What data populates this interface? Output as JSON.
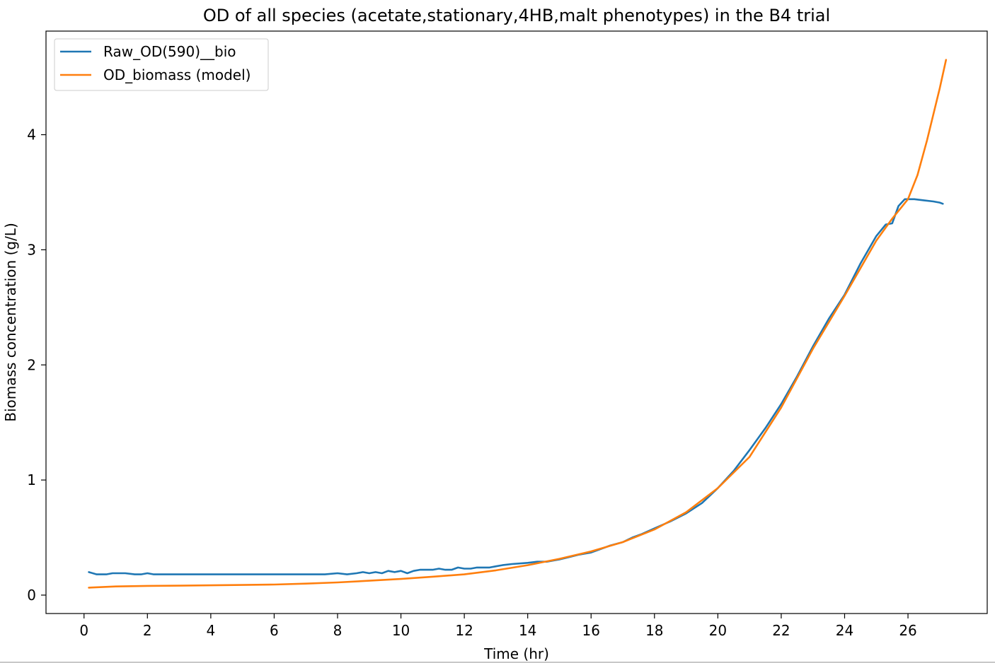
{
  "chart_data": {
    "type": "line",
    "title": "OD of all species (acetate,stationary,4HB,malt phenotypes) in the B4 trial",
    "xlabel": "Time (hr)",
    "ylabel": "Biomass concentration (g/L)",
    "xlim": [
      -1.2,
      28.5
    ],
    "ylim": [
      -0.16,
      4.9
    ],
    "xticks": [
      0,
      2,
      4,
      6,
      8,
      10,
      12,
      14,
      16,
      18,
      20,
      22,
      24,
      26
    ],
    "xtick_labels": [
      "0",
      "2",
      "4",
      "6",
      "8",
      "10",
      "12",
      "14",
      "16",
      "18",
      "20",
      "22",
      "24",
      "26"
    ],
    "yticks": [
      0,
      1,
      2,
      3,
      4
    ],
    "ytick_labels": [
      "0",
      "1",
      "2",
      "3",
      "4"
    ],
    "grid": false,
    "legend_position": "top-left",
    "series": [
      {
        "name": "Raw_OD(590)__bio",
        "color": "#1f77b4",
        "x": [
          0.15,
          0.4,
          0.7,
          0.9,
          1.1,
          1.3,
          1.6,
          1.8,
          2.0,
          2.2,
          2.5,
          3.0,
          3.3,
          3.6,
          4.0,
          4.5,
          5.0,
          5.3,
          5.6,
          6.0,
          6.3,
          6.5,
          6.8,
          7.0,
          7.3,
          7.6,
          8.0,
          8.3,
          8.6,
          8.8,
          9.0,
          9.2,
          9.4,
          9.6,
          9.8,
          10.0,
          10.2,
          10.4,
          10.6,
          10.8,
          11.0,
          11.2,
          11.4,
          11.6,
          11.8,
          12.0,
          12.2,
          12.4,
          12.6,
          12.8,
          13.0,
          13.2,
          13.5,
          14.0,
          14.3,
          14.6,
          15.0,
          15.3,
          15.6,
          16.0,
          16.3,
          16.6,
          17.0,
          17.3,
          17.6,
          18.0,
          18.5,
          19.0,
          19.5,
          20.0,
          20.5,
          21.0,
          21.5,
          22.0,
          22.5,
          23.0,
          23.5,
          24.0,
          24.5,
          25.0,
          25.3,
          25.5,
          25.7,
          25.9,
          26.2,
          26.5,
          26.8,
          27.0,
          27.1
        ],
        "values": [
          0.2,
          0.18,
          0.18,
          0.19,
          0.19,
          0.19,
          0.18,
          0.18,
          0.19,
          0.18,
          0.18,
          0.18,
          0.18,
          0.18,
          0.18,
          0.18,
          0.18,
          0.18,
          0.18,
          0.18,
          0.18,
          0.18,
          0.18,
          0.18,
          0.18,
          0.18,
          0.19,
          0.18,
          0.19,
          0.2,
          0.19,
          0.2,
          0.19,
          0.21,
          0.2,
          0.21,
          0.19,
          0.21,
          0.22,
          0.22,
          0.22,
          0.23,
          0.22,
          0.22,
          0.24,
          0.23,
          0.23,
          0.24,
          0.24,
          0.24,
          0.25,
          0.26,
          0.27,
          0.28,
          0.29,
          0.29,
          0.31,
          0.33,
          0.35,
          0.37,
          0.4,
          0.43,
          0.46,
          0.5,
          0.53,
          0.58,
          0.64,
          0.71,
          0.8,
          0.93,
          1.08,
          1.26,
          1.45,
          1.66,
          1.9,
          2.16,
          2.4,
          2.61,
          2.88,
          3.12,
          3.22,
          3.23,
          3.38,
          3.44,
          3.44,
          3.43,
          3.42,
          3.41,
          3.4
        ]
      },
      {
        "name": "OD_biomass (model)",
        "color": "#ff7f0e",
        "x": [
          0.15,
          1.0,
          2.0,
          3.0,
          4.0,
          5.0,
          6.0,
          7.0,
          8.0,
          9.0,
          10.0,
          11.0,
          12.0,
          13.0,
          14.0,
          15.0,
          16.0,
          17.0,
          18.0,
          19.0,
          20.0,
          21.0,
          22.0,
          23.0,
          24.0,
          25.0,
          25.5,
          26.0,
          26.3,
          26.6,
          27.0,
          27.2
        ],
        "values": [
          0.065,
          0.075,
          0.08,
          0.082,
          0.085,
          0.088,
          0.092,
          0.1,
          0.11,
          0.125,
          0.14,
          0.16,
          0.18,
          0.215,
          0.26,
          0.315,
          0.38,
          0.46,
          0.57,
          0.72,
          0.93,
          1.2,
          1.63,
          2.14,
          2.6,
          3.08,
          3.27,
          3.44,
          3.65,
          3.95,
          4.4,
          4.65
        ]
      }
    ]
  }
}
